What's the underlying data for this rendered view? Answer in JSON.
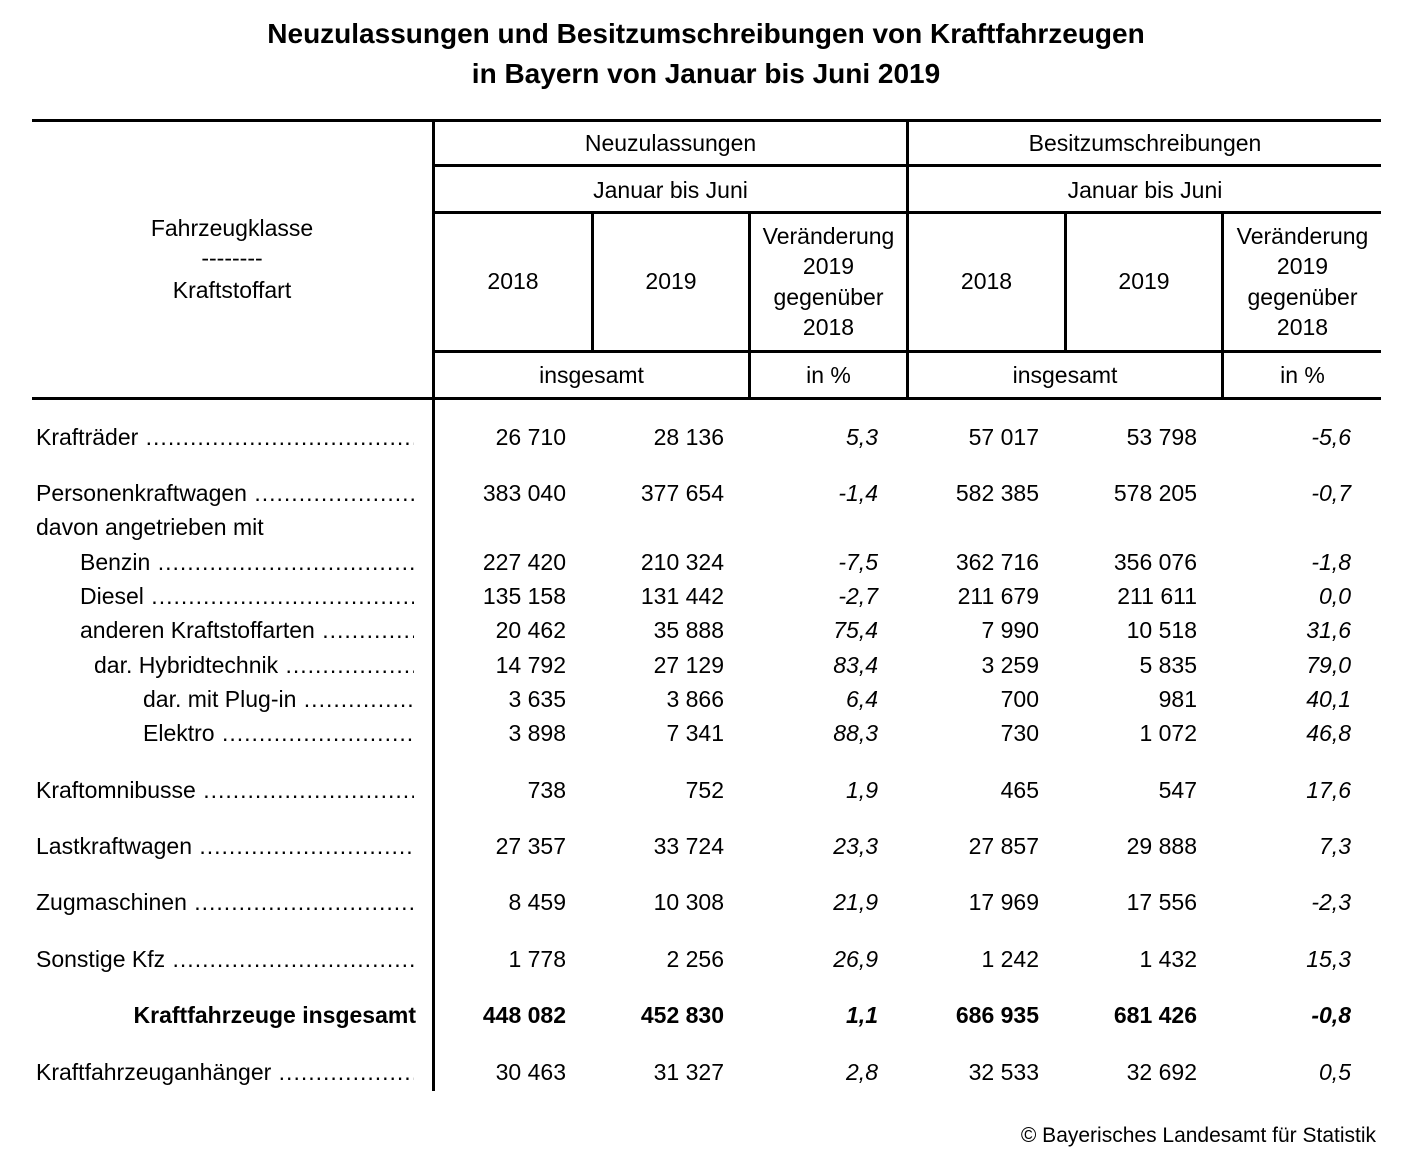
{
  "title": {
    "line1": "Neuzulassungen und Besitzumschreibungen von Kraftfahrzeugen",
    "line2": "in Bayern von Januar bis Juni 2019"
  },
  "header": {
    "stub": [
      "Fahrzeugklasse",
      "--------",
      "Kraftstoffart"
    ],
    "group1": "Neuzulassungen",
    "group2": "Besitzumschreibungen",
    "period1": "Januar bis Juni",
    "period2": "Januar bis Juni",
    "year_a": "2018",
    "year_b": "2019",
    "change": [
      "Veränderung",
      "2019",
      "gegenüber",
      "2018"
    ],
    "unit_total": "insgesamt",
    "unit_pct": "in %"
  },
  "rows": [
    {
      "label": "Krafträder",
      "dots": true,
      "indent": 0,
      "values": [
        "26 710",
        "28 136",
        "5,3",
        "57 017",
        "53 798",
        "-5,6"
      ]
    },
    {
      "label": "Personenkraftwagen",
      "dots": true,
      "indent": 0,
      "values": [
        "383 040",
        "377 654",
        "-1,4",
        "582 385",
        "578 205",
        "-0,7"
      ]
    },
    {
      "label": "davon angetrieben mit",
      "dots": false,
      "indent": 0,
      "values": []
    },
    {
      "label": "Benzin",
      "dots": true,
      "indent": 1,
      "values": [
        "227 420",
        "210 324",
        "-7,5",
        "362 716",
        "356 076",
        "-1,8"
      ]
    },
    {
      "label": "Diesel",
      "dots": true,
      "indent": 1,
      "values": [
        "135 158",
        "131 442",
        "-2,7",
        "211 679",
        "211 611",
        "0,0"
      ]
    },
    {
      "label": "anderen Kraftstoffarten",
      "dots": true,
      "indent": 1,
      "values": [
        "20 462",
        "35 888",
        "75,4",
        "7 990",
        "10 518",
        "31,6"
      ]
    },
    {
      "label": "dar. Hybridtechnik",
      "dots": true,
      "indent": 2,
      "values": [
        "14 792",
        "27 129",
        "83,4",
        "3 259",
        "5 835",
        "79,0"
      ]
    },
    {
      "label": "dar. mit Plug-in",
      "dots": true,
      "indent": 3,
      "values": [
        "3 635",
        "3 866",
        "6,4",
        "700",
        "981",
        "40,1"
      ]
    },
    {
      "label": "Elektro",
      "dots": true,
      "indent": 3,
      "values": [
        "3 898",
        "7 341",
        "88,3",
        "730",
        "1 072",
        "46,8"
      ]
    },
    {
      "label": "Kraftomnibusse",
      "dots": true,
      "indent": 0,
      "values": [
        "738",
        "752",
        "1,9",
        "465",
        "547",
        "17,6"
      ]
    },
    {
      "label": "Lastkraftwagen",
      "dots": true,
      "indent": 0,
      "values": [
        "27 357",
        "33 724",
        "23,3",
        "27 857",
        "29 888",
        "7,3"
      ]
    },
    {
      "label": "Zugmaschinen",
      "dots": true,
      "indent": 0,
      "values": [
        "8 459",
        "10 308",
        "21,9",
        "17 969",
        "17 556",
        "-2,3"
      ]
    },
    {
      "label": "Sonstige Kfz",
      "dots": true,
      "indent": 0,
      "values": [
        "1 778",
        "2 256",
        "26,9",
        "1 242",
        "1 432",
        "15,3"
      ]
    },
    {
      "label": "Kraftfahrzeuge insgesamt",
      "dots": false,
      "indent": 0,
      "bold": true,
      "values": [
        "448 082",
        "452 830",
        "1,1",
        "686 935",
        "681 426",
        "-0,8"
      ]
    },
    {
      "label": "Kraftfahrzeuganhänger",
      "dots": true,
      "indent": 0,
      "values": [
        "30 463",
        "31 327",
        "2,8",
        "32 533",
        "32 692",
        "0,5"
      ]
    }
  ],
  "footer": "© Bayerisches Landesamt für Statistik"
}
